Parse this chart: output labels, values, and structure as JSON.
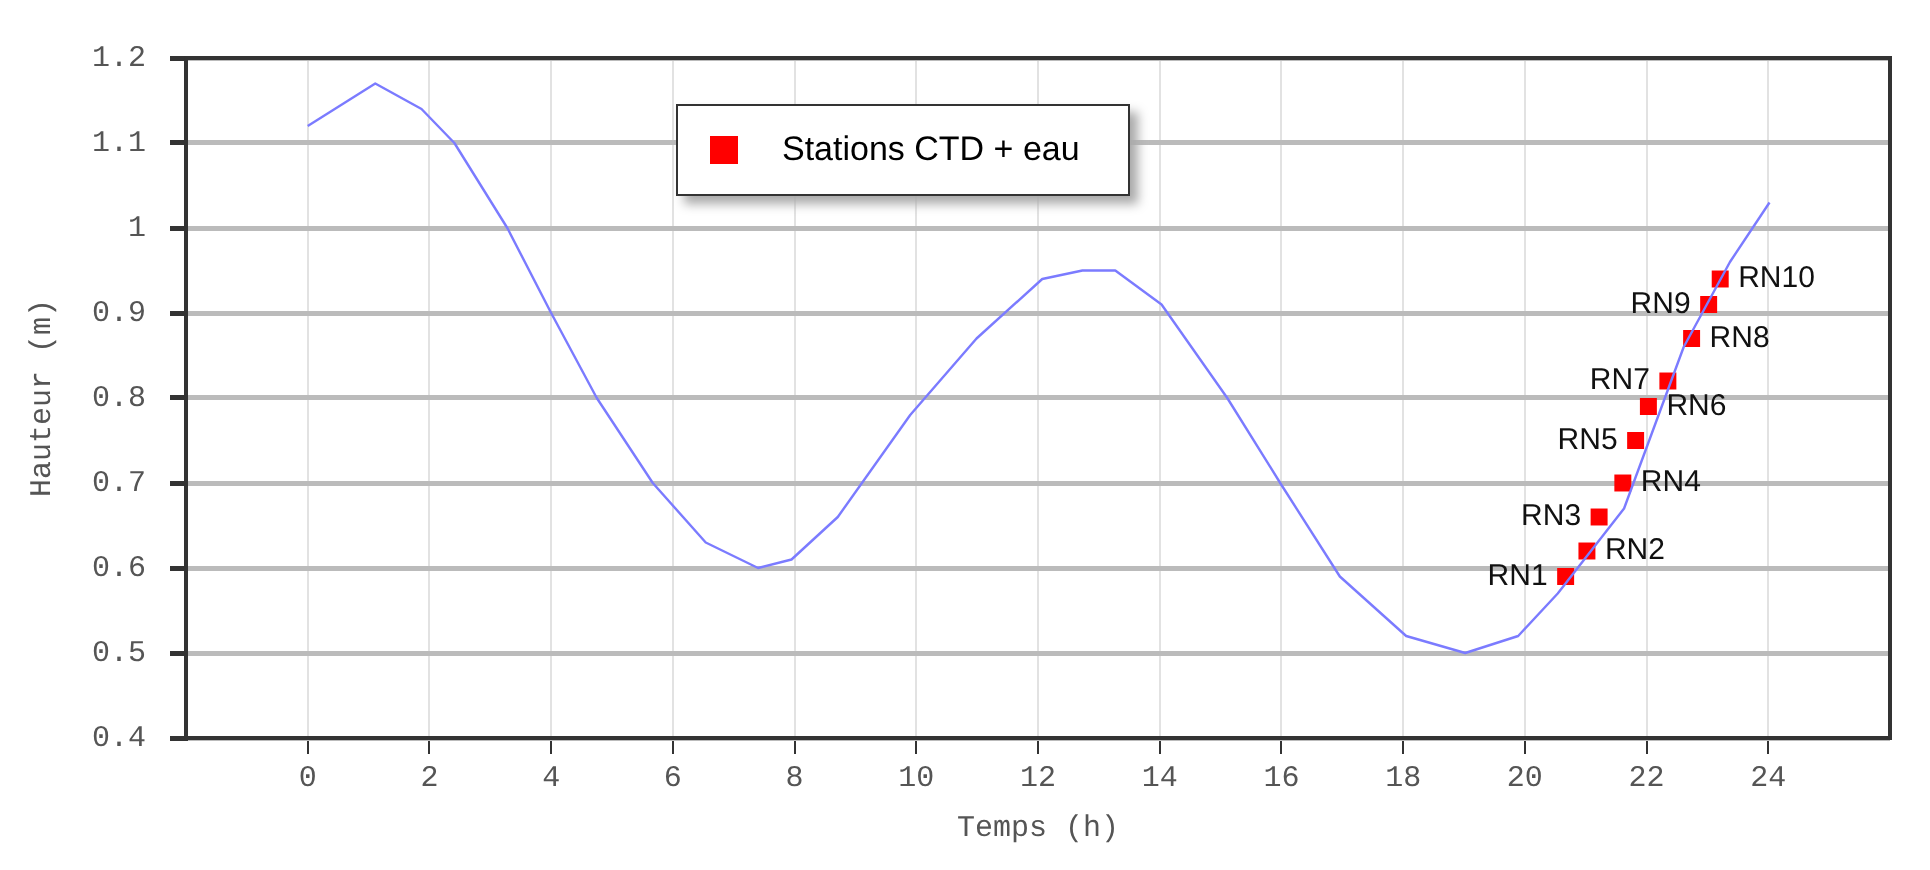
{
  "chart_data": {
    "type": "line",
    "xlabel": "Temps (h)",
    "ylabel": "Hauteur (m)",
    "xlim": [
      -2,
      26
    ],
    "xticks": [
      0,
      2,
      4,
      6,
      8,
      10,
      12,
      14,
      16,
      18,
      20,
      22,
      24
    ],
    "ylim": [
      0.4,
      1.2
    ],
    "yticks": [
      0.4,
      0.5,
      0.6,
      0.7,
      0.8,
      0.9,
      1,
      1.1,
      1.2
    ],
    "grid": true,
    "legend": "top",
    "series": [
      {
        "type": "line",
        "color": "#7b7bff",
        "marker": "none",
        "x": [
          0,
          1.11,
          1.87,
          2.41,
          3.28,
          4.0,
          4.75,
          5.67,
          6.54,
          7.4,
          7.95,
          8.71,
          9.9,
          10.99,
          12.07,
          12.73,
          13.27,
          14.03,
          15.11,
          15.98,
          16.96,
          18.05,
          19.02,
          19.89,
          20.54,
          21.63,
          22.61,
          23.37,
          24.02
        ],
        "values": [
          1.12,
          1.17,
          1.14,
          1.1,
          1.0,
          0.9,
          0.8,
          0.7,
          0.63,
          0.6,
          0.61,
          0.66,
          0.78,
          0.87,
          0.94,
          0.95,
          0.95,
          0.91,
          0.8,
          0.7,
          0.59,
          0.52,
          0.5,
          0.52,
          0.57,
          0.67,
          0.86,
          0.96,
          1.03
        ]
      },
      {
        "type": "scatter",
        "name": "Stations CTD + eau",
        "color": "#ff0000",
        "marker": "square",
        "x": [
          20.67,
          21.02,
          21.22,
          21.61,
          21.82,
          22.03,
          22.35,
          22.74,
          23.02,
          23.21
        ],
        "values": [
          0.59,
          0.62,
          0.66,
          0.7,
          0.75,
          0.79,
          0.82,
          0.87,
          0.91,
          0.94
        ]
      }
    ],
    "annotations": [
      {
        "text": "RN1",
        "x": 20.67,
        "y": 0.59
      },
      {
        "text": "RN2",
        "x": 21.02,
        "y": 0.62
      },
      {
        "text": "RN3",
        "x": 21.22,
        "y": 0.66
      },
      {
        "text": "RN4",
        "x": 21.61,
        "y": 0.7
      },
      {
        "text": "RN5",
        "x": 21.82,
        "y": 0.75
      },
      {
        "text": "RN6",
        "x": 22.03,
        "y": 0.79
      },
      {
        "text": "RN7",
        "x": 22.35,
        "y": 0.82
      },
      {
        "text": "RN8",
        "x": 22.74,
        "y": 0.87
      },
      {
        "text": "RN9",
        "x": 23.02,
        "y": 0.91
      },
      {
        "text": "RN10",
        "x": 23.21,
        "y": 0.94
      }
    ]
  }
}
